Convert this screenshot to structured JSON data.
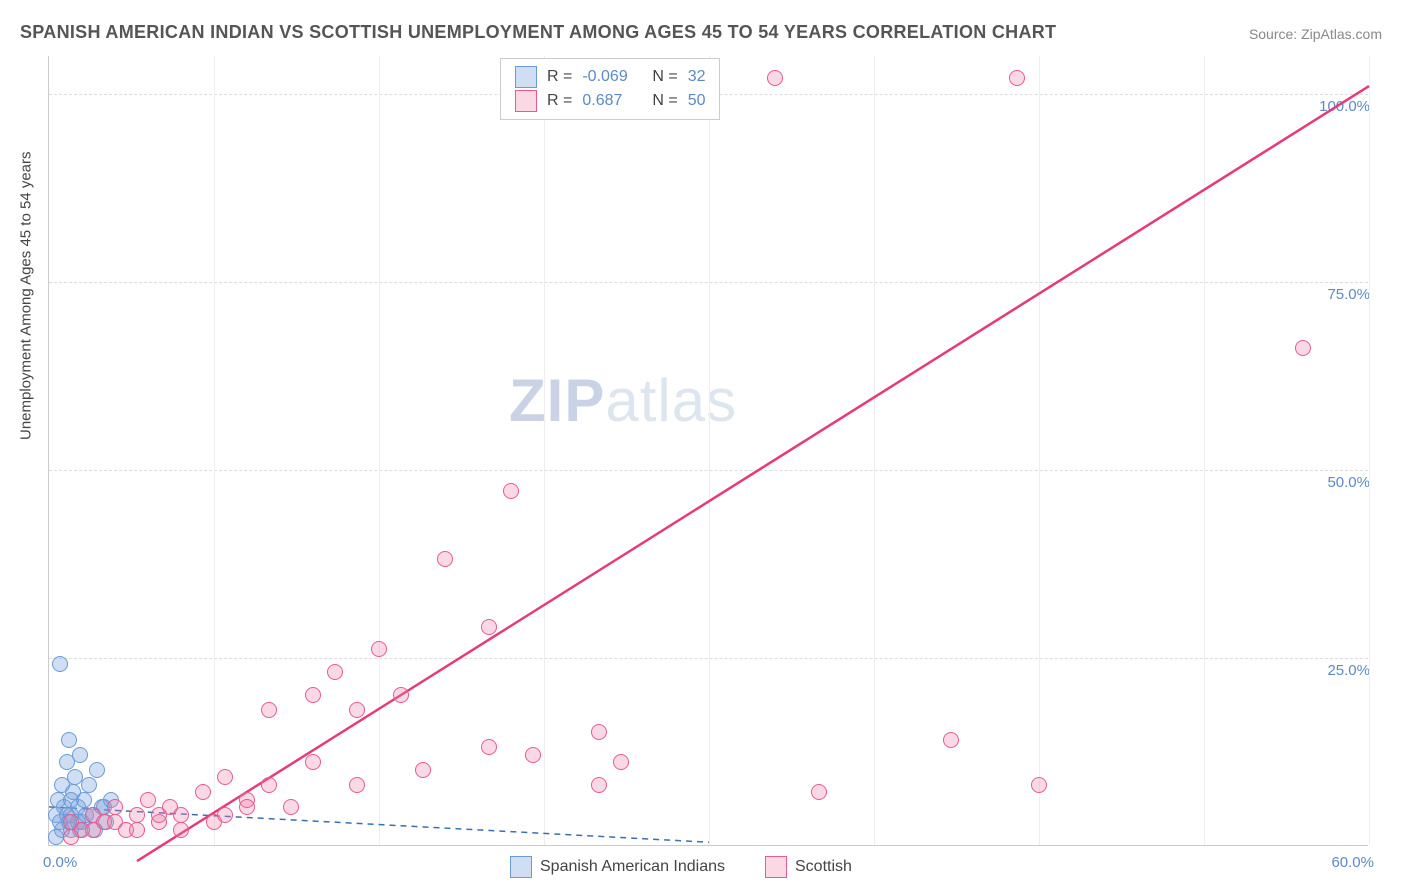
{
  "title": "SPANISH AMERICAN INDIAN VS SCOTTISH UNEMPLOYMENT AMONG AGES 45 TO 54 YEARS CORRELATION CHART",
  "source": "Source: ZipAtlas.com",
  "y_axis_label": "Unemployment Among Ages 45 to 54 years",
  "chart": {
    "type": "scatter",
    "xlim": [
      0,
      60
    ],
    "ylim": [
      0,
      105
    ],
    "x_start_label": "0.0%",
    "x_end_label": "60.0%",
    "y_tick_values": [
      25,
      50,
      75,
      100
    ],
    "y_tick_labels": [
      "25.0%",
      "50.0%",
      "75.0%",
      "100.0%"
    ],
    "x_grid_values": [
      7.5,
      15,
      22.5,
      30,
      37.5,
      45,
      52.5,
      60
    ],
    "background_color": "#ffffff",
    "grid_color": "#dddddd",
    "axis_color": "#cccccc",
    "tick_label_color": "#5b8ac7",
    "dot_radius": 8,
    "series": [
      {
        "name": "Spanish American Indians",
        "fill": "rgba(120,160,220,0.35)",
        "stroke": "#6a9bd8",
        "R": "-0.069",
        "N": "32",
        "trend": {
          "x1": 0,
          "y1": 5.2,
          "x2": 30,
          "y2": 0.5,
          "color": "#3a6fb0",
          "dash": "6,5",
          "width": 1.5
        },
        "points": [
          [
            0.3,
            4
          ],
          [
            0.4,
            6
          ],
          [
            0.5,
            3
          ],
          [
            0.6,
            8
          ],
          [
            0.7,
            5
          ],
          [
            0.8,
            11
          ],
          [
            0.9,
            14
          ],
          [
            1.0,
            4
          ],
          [
            1.1,
            7
          ],
          [
            1.2,
            9
          ],
          [
            1.3,
            5
          ],
          [
            1.4,
            12
          ],
          [
            1.5,
            3
          ],
          [
            1.6,
            6
          ],
          [
            1.8,
            8
          ],
          [
            2.0,
            4
          ],
          [
            2.2,
            10
          ],
          [
            2.4,
            5
          ],
          [
            2.6,
            3
          ],
          [
            2.8,
            6
          ],
          [
            1.0,
            2
          ],
          [
            1.3,
            3
          ],
          [
            0.5,
            24
          ],
          [
            0.6,
            2
          ],
          [
            0.8,
            4
          ],
          [
            1.0,
            6
          ],
          [
            1.4,
            2
          ],
          [
            0.3,
            1
          ],
          [
            0.9,
            3
          ],
          [
            1.7,
            4
          ],
          [
            2.1,
            2
          ],
          [
            2.5,
            5
          ]
        ]
      },
      {
        "name": "Scottish",
        "fill": "rgba(240,130,170,0.30)",
        "stroke": "#e75a92",
        "R": "0.687",
        "N": "50",
        "trend": {
          "x1": 4,
          "y1": -2,
          "x2": 60,
          "y2": 101,
          "color": "#e63b7a",
          "dash": "",
          "width": 2.5
        },
        "points": [
          [
            1,
            3
          ],
          [
            1.5,
            2
          ],
          [
            2,
            4
          ],
          [
            2.5,
            3
          ],
          [
            3,
            5
          ],
          [
            3.5,
            2
          ],
          [
            4,
            4
          ],
          [
            4.5,
            6
          ],
          [
            5,
            3
          ],
          [
            5.5,
            5
          ],
          [
            6,
            4
          ],
          [
            7,
            7
          ],
          [
            7.5,
            3
          ],
          [
            8,
            9
          ],
          [
            9,
            6
          ],
          [
            10,
            8
          ],
          [
            10,
            18
          ],
          [
            11,
            5
          ],
          [
            12,
            11
          ],
          [
            12,
            20
          ],
          [
            13,
            23
          ],
          [
            14,
            8
          ],
          [
            14,
            18
          ],
          [
            15,
            26
          ],
          [
            16,
            20
          ],
          [
            17,
            10
          ],
          [
            18,
            38
          ],
          [
            20,
            13
          ],
          [
            20,
            29
          ],
          [
            21,
            47
          ],
          [
            22,
            12
          ],
          [
            23,
            102
          ],
          [
            25,
            8
          ],
          [
            25,
            15
          ],
          [
            26,
            11
          ],
          [
            27,
            102
          ],
          [
            33,
            102
          ],
          [
            35,
            7
          ],
          [
            41,
            14
          ],
          [
            44,
            102
          ],
          [
            45,
            8
          ],
          [
            57,
            66
          ],
          [
            1,
            1
          ],
          [
            2,
            2
          ],
          [
            3,
            3
          ],
          [
            4,
            2
          ],
          [
            5,
            4
          ],
          [
            6,
            2
          ],
          [
            8,
            4
          ],
          [
            9,
            5
          ]
        ]
      }
    ]
  },
  "legend_top": {
    "r_prefix": "R =",
    "n_prefix": "N ="
  },
  "legend_bottom": {
    "items": [
      "Spanish American Indians",
      "Scottish"
    ]
  },
  "watermark": {
    "zip": "ZIP",
    "atlas": "atlas"
  }
}
